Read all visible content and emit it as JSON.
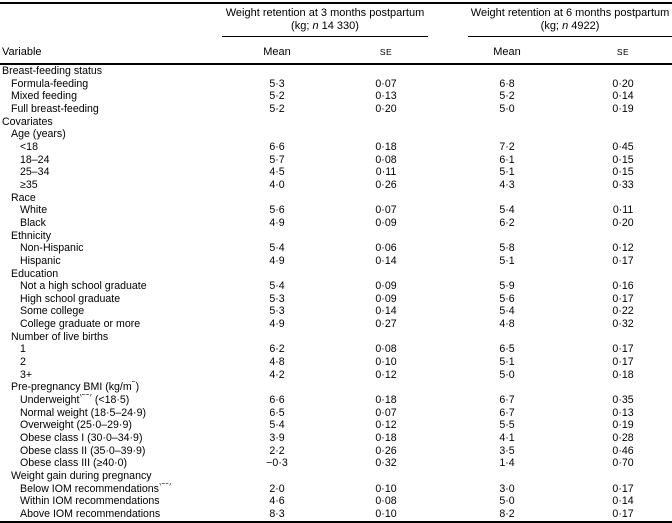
{
  "header": {
    "variable_label": "Variable",
    "groups": [
      {
        "title": "Weight retention at 3 months postpartum",
        "sub_prefix": "(kg; ",
        "n_italic": "n",
        "sub_suffix": " 14 330)",
        "mean_label": "Mean",
        "se_label": "SE"
      },
      {
        "title": "Weight retention at 6 months postpartum",
        "sub_prefix": "(kg; ",
        "n_italic": "n",
        "sub_suffix": " 4922)",
        "mean_label": "Mean",
        "se_label": "SE"
      }
    ]
  },
  "rows": [
    {
      "label": "Breast-feeding status",
      "indent": 0
    },
    {
      "label": "Formula-feeding",
      "indent": 1,
      "v": [
        "5·3",
        "0·07",
        "6·8",
        "0·20"
      ]
    },
    {
      "label": "Mixed feeding",
      "indent": 1,
      "v": [
        "5·2",
        "0·13",
        "5·2",
        "0·14"
      ]
    },
    {
      "label": "Full breast-feeding",
      "indent": 1,
      "v": [
        "5·2",
        "0·20",
        "5·0",
        "0·19"
      ]
    },
    {
      "label": "Covariates",
      "indent": 0
    },
    {
      "label": "Age (years)",
      "indent": 1
    },
    {
      "label": "<18",
      "indent": 2,
      "v": [
        "6·6",
        "0·18",
        "7·2",
        "0·45"
      ]
    },
    {
      "label": "18–24",
      "indent": 2,
      "v": [
        "5·7",
        "0·08",
        "6·1",
        "0·15"
      ]
    },
    {
      "label": "25–34",
      "indent": 2,
      "v": [
        "4·5",
        "0·11",
        "5·1",
        "0·15"
      ]
    },
    {
      "label": "≥35",
      "indent": 2,
      "v": [
        "4·0",
        "0·26",
        "4·3",
        "0·33"
      ]
    },
    {
      "label": "Race",
      "indent": 1
    },
    {
      "label": "White",
      "indent": 2,
      "v": [
        "5·6",
        "0·07",
        "5·4",
        "0·11"
      ]
    },
    {
      "label": "Black",
      "indent": 2,
      "v": [
        "4·9",
        "0·09",
        "6·2",
        "0·20"
      ]
    },
    {
      "label": "Ethnicity",
      "indent": 1
    },
    {
      "label": "Non-Hispanic",
      "indent": 2,
      "v": [
        "5·4",
        "0·06",
        "5·8",
        "0·12"
      ]
    },
    {
      "label": "Hispanic",
      "indent": 2,
      "v": [
        "4·9",
        "0·14",
        "5·1",
        "0·17"
      ]
    },
    {
      "label": "Education",
      "indent": 1
    },
    {
      "label": "Not a high school graduate",
      "indent": 2,
      "v": [
        "5·4",
        "0·09",
        "5·9",
        "0·16"
      ]
    },
    {
      "label": "High school graduate",
      "indent": 2,
      "v": [
        "5·3",
        "0·09",
        "5·6",
        "0·17"
      ]
    },
    {
      "label": "Some college",
      "indent": 2,
      "v": [
        "5·3",
        "0·14",
        "5·4",
        "0·22"
      ]
    },
    {
      "label": "College graduate or more",
      "indent": 2,
      "v": [
        "4·9",
        "0·27",
        "4·8",
        "0·32"
      ]
    },
    {
      "label": "Number of live births",
      "indent": 1
    },
    {
      "label": "1",
      "indent": 2,
      "v": [
        "6·2",
        "0·08",
        "6·5",
        "0·17"
      ]
    },
    {
      "label": "2",
      "indent": 2,
      "v": [
        "4·8",
        "0·10",
        "5·1",
        "0·17"
      ]
    },
    {
      "label": "3+",
      "indent": 2,
      "v": [
        "4·2",
        "0·12",
        "5·0",
        "0·18"
      ]
    },
    {
      "label": "Pre-pregnancy BMI (kg/m",
      "sup": "2",
      "tail": ")",
      "indent": 1
    },
    {
      "label": "Underweight",
      "sup": "(29)",
      "tail": " (<18·5)",
      "indent": 2,
      "v": [
        "6·6",
        "0·18",
        "6·7",
        "0·35"
      ]
    },
    {
      "label": "Normal weight (18·5–24·9)",
      "indent": 2,
      "v": [
        "6·5",
        "0·07",
        "6·7",
        "0·13"
      ]
    },
    {
      "label": "Overweight (25·0–29·9)",
      "indent": 2,
      "v": [
        "5·4",
        "0·12",
        "5·5",
        "0·19"
      ]
    },
    {
      "label": "Obese class I (30·0–34·9)",
      "indent": 2,
      "v": [
        "3·9",
        "0·18",
        "4·1",
        "0·28"
      ]
    },
    {
      "label": "Obese class II (35·0–39·9)",
      "indent": 2,
      "v": [
        "2·2",
        "0·26",
        "3·5",
        "0·46"
      ]
    },
    {
      "label": "Obese class III (≥40·0)",
      "indent": 2,
      "v": [
        "−0·3",
        "0·32",
        "1·4",
        "0·70"
      ]
    },
    {
      "label": "Weight gain during pregnancy",
      "indent": 1
    },
    {
      "label": "Below IOM recommendations",
      "sup": "(30)",
      "indent": 2,
      "v": [
        "2·0",
        "0·10",
        "3·0",
        "0·17"
      ]
    },
    {
      "label": "Within IOM recommendations",
      "indent": 2,
      "v": [
        "4·6",
        "0·08",
        "5·0",
        "0·14"
      ]
    },
    {
      "label": "Above IOM recommendations",
      "indent": 2,
      "v": [
        "8·3",
        "0·10",
        "8·2",
        "0·17"
      ]
    }
  ]
}
